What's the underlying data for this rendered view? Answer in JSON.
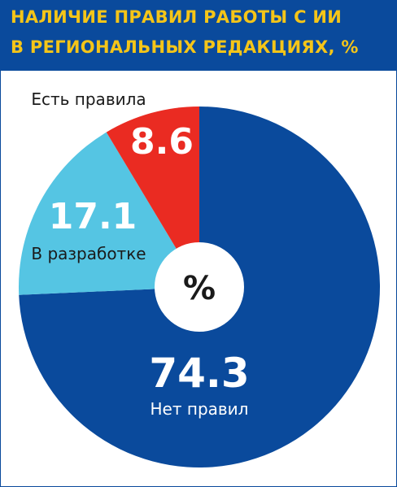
{
  "title_lines": [
    "НАЛИЧИЕ ПРАВИЛ РАБОТЫ С ИИ",
    "В РЕГИОНАЛЬНЫХ РЕДАКЦИЯХ, %"
  ],
  "chart_data": {
    "type": "pie",
    "title": "НАЛИЧИЕ ПРАВИЛ РАБОТЫ С ИИ В РЕГИОНАЛЬНЫХ РЕДАКЦИЯХ, %",
    "center_label": "%",
    "slices": [
      {
        "label": "Нет правил",
        "value": 74.3,
        "value_text": "74.3",
        "color": "#0a4a9c"
      },
      {
        "label": "В разработке",
        "value": 17.1,
        "value_text": "17.1",
        "color": "#55c5e3"
      },
      {
        "label": "Есть правила",
        "value": 8.6,
        "value_text": "8.6",
        "color": "#ea2b22"
      }
    ]
  },
  "colors": {
    "header_bg": "#0a4a9c",
    "title_text": "#f5c518",
    "hole": "#ffffff"
  }
}
